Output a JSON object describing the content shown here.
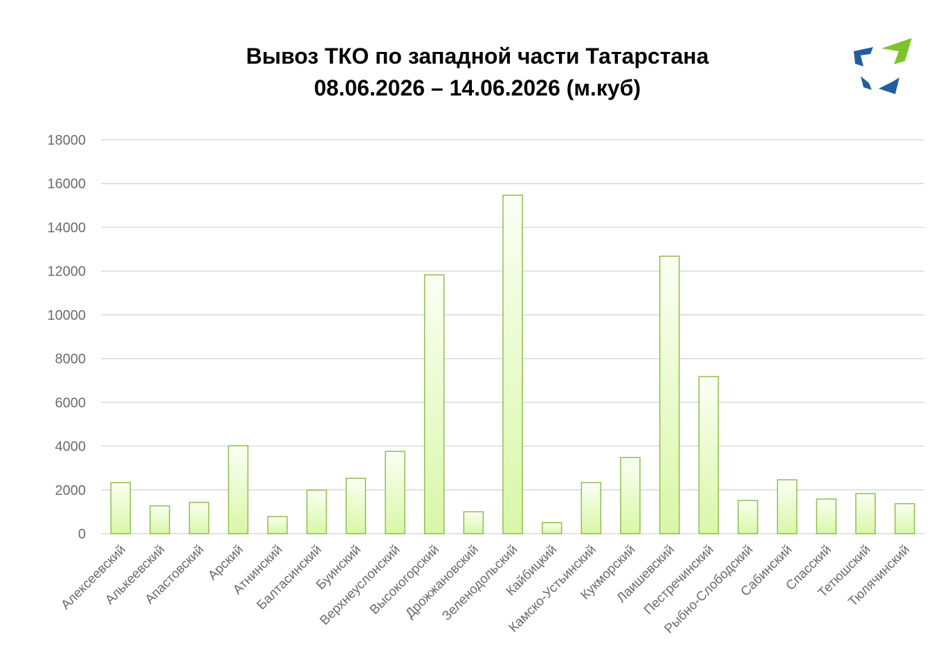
{
  "colors": {
    "bar_fill_top": "#fbfff3",
    "bar_fill_bottom": "#d9f7a8",
    "bar_stroke": "#8cbf4a",
    "grid": "#d9d9d9",
    "tick_text": "#6b6b6b",
    "logo_blue": "#1f5f9c",
    "logo_green": "#7cc42a"
  },
  "icons": {
    "logo": "eco-logo-icon"
  },
  "chart_data": {
    "type": "bar",
    "title": "Вывоз ТКО по западной части Татарстана",
    "subtitle": "08.06.2026 – 14.06.2026 (м.куб)",
    "xlabel": "",
    "ylabel": "",
    "ylim": [
      0,
      18000
    ],
    "yticks": [
      "0",
      "2000",
      "4000",
      "6000",
      "8000",
      "10000",
      "12000",
      "14000",
      "16000",
      "18000"
    ],
    "grid": true,
    "legend": "none",
    "categories": [
      "Алексеевский",
      "Алькеевский",
      "Апастовский",
      "Арский",
      "Атнинский",
      "Балтасинский",
      "Буинский",
      "Верхнеуслонский",
      "Высокогорский",
      "Дрожжановский",
      "Зеленодольский",
      "Кайбицкий",
      "Камско-Устьинский",
      "Кукморский",
      "Лаишевский",
      "Пестречинский",
      "Рыбно-Слободский",
      "Сабинский",
      "Спасский",
      "Тетюшский",
      "Тюлячинский"
    ],
    "values": [
      2330,
      1270,
      1430,
      4020,
      780,
      1990,
      2530,
      3760,
      11830,
      1000,
      15470,
      500,
      2330,
      3480,
      12680,
      7180,
      1520,
      2460,
      1580,
      1830,
      1370
    ]
  }
}
